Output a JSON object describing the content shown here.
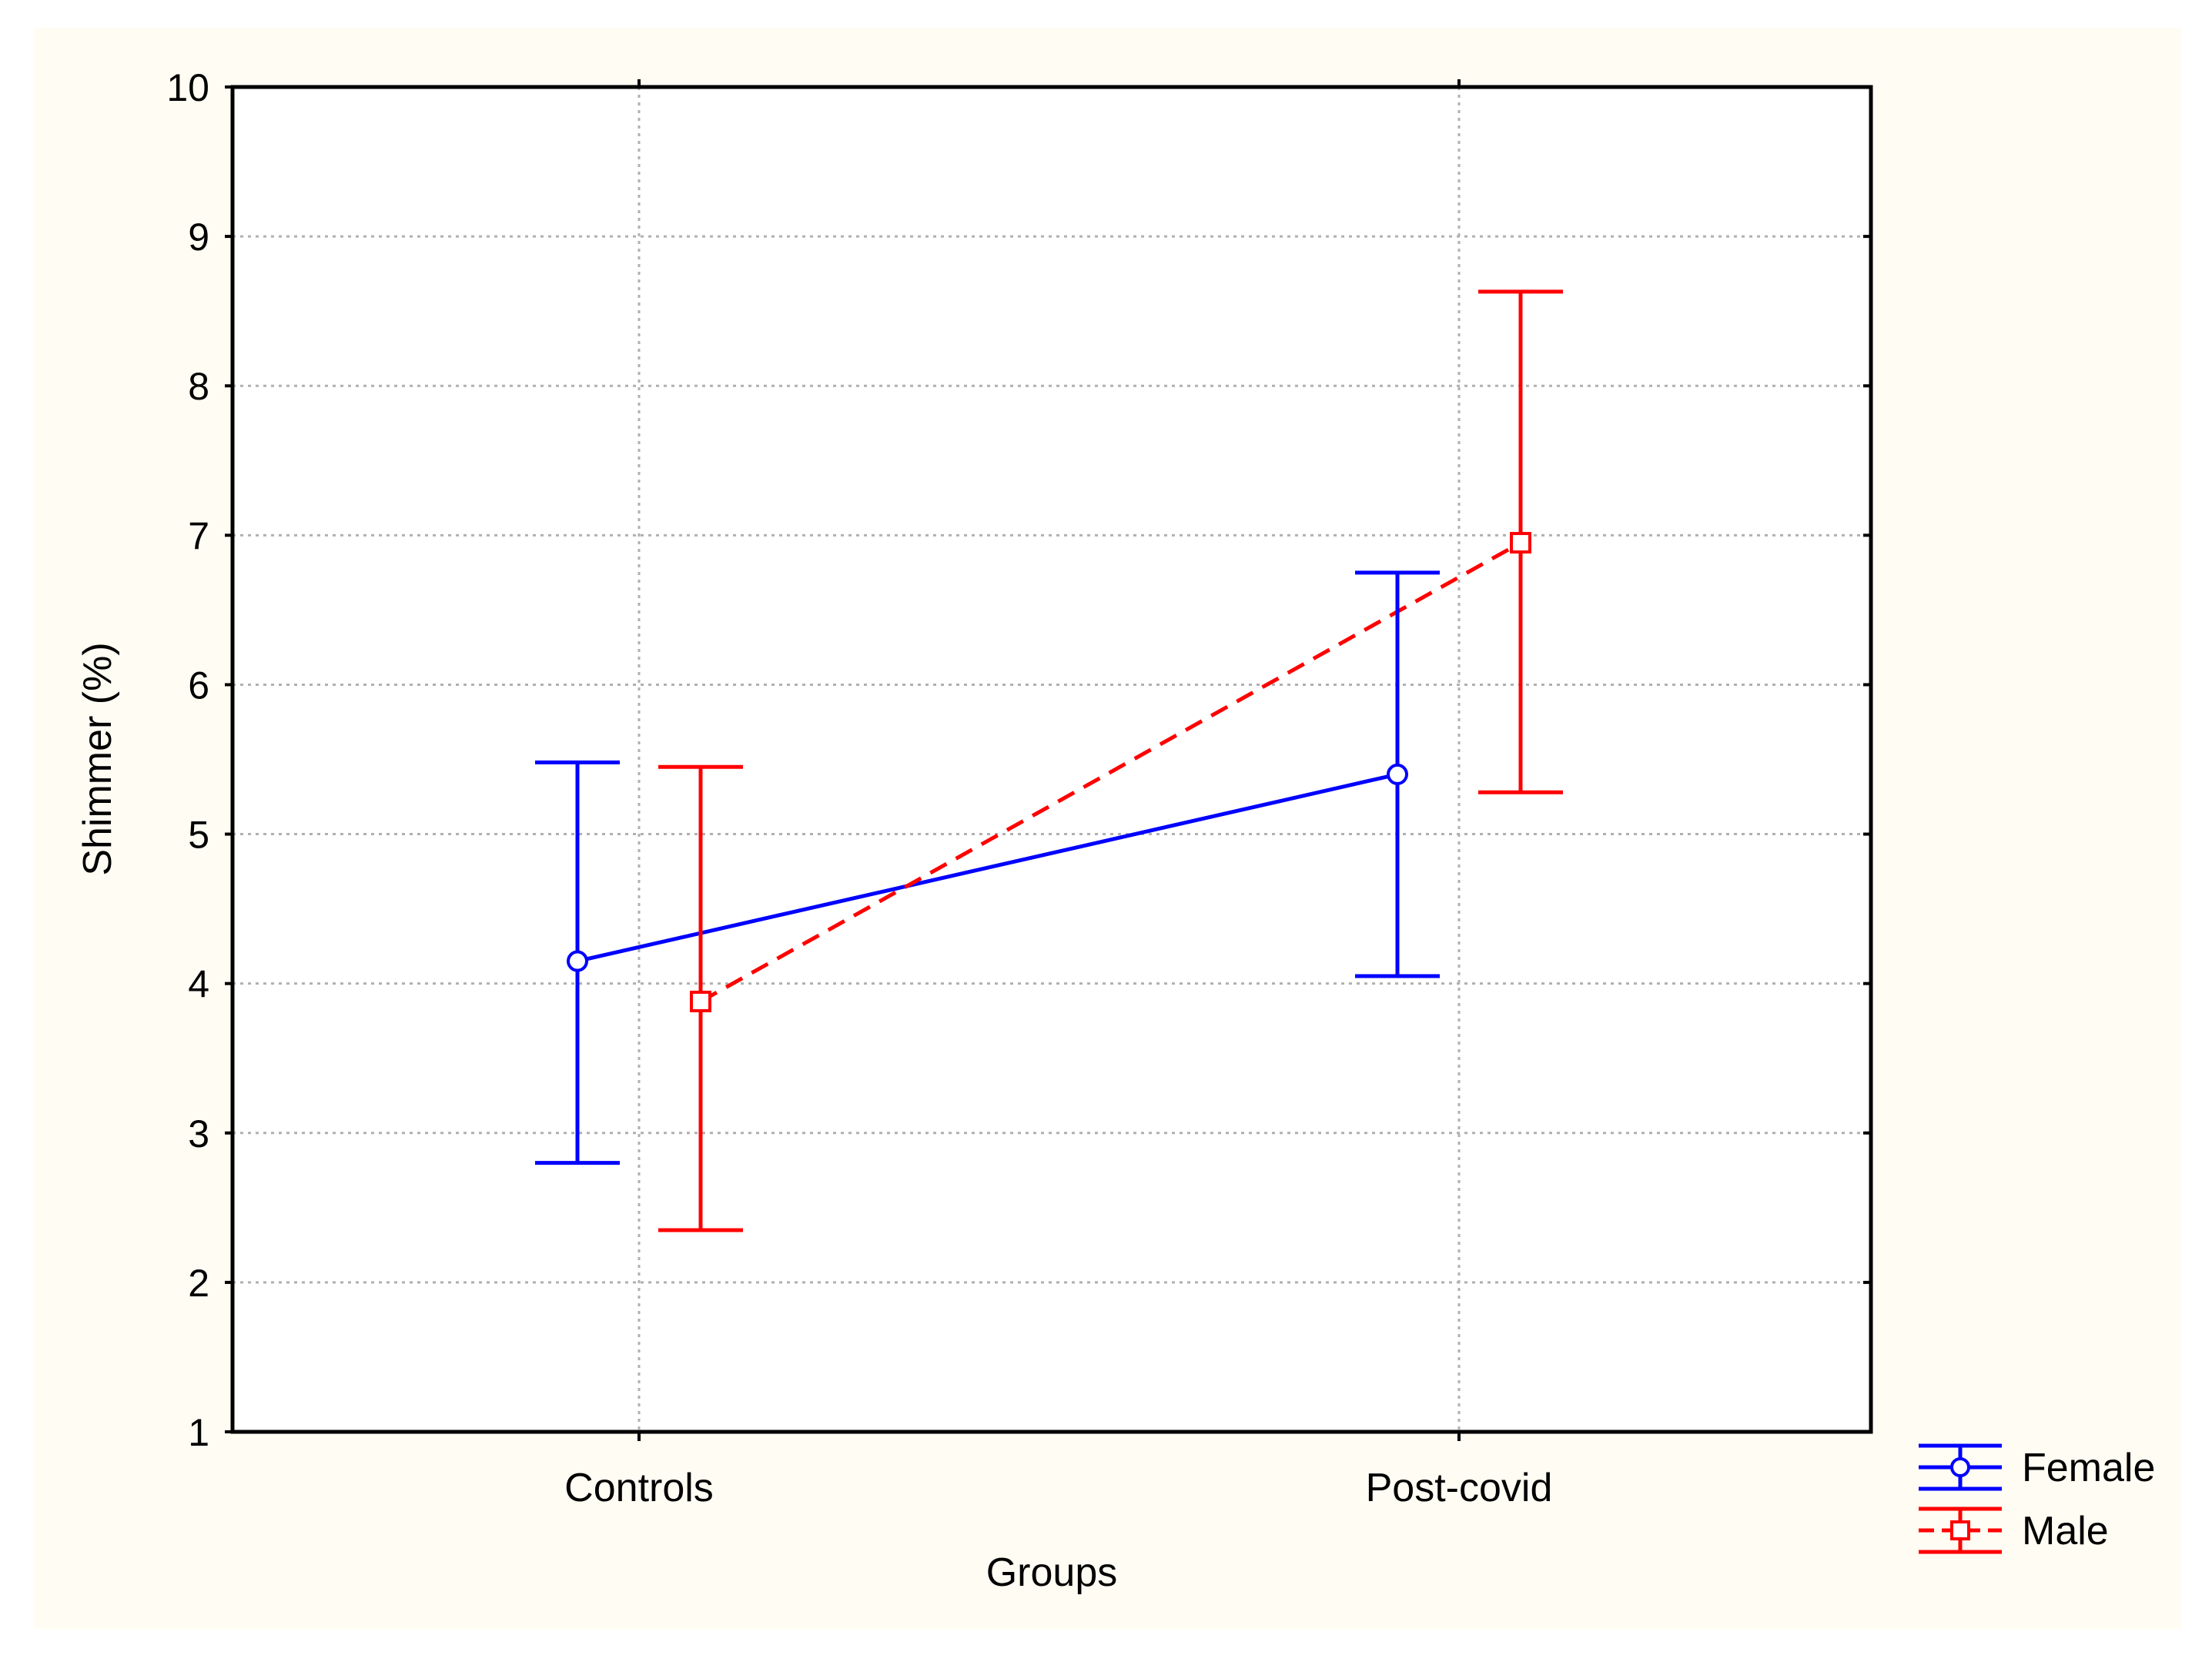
{
  "colors": {
    "page_background": "#ffffff",
    "panel_background": "#fffdf3",
    "plot_background": "#ffffff",
    "female": "#0000ff",
    "male": "#ff0000",
    "grid": "#b0b0b0"
  },
  "chart_data": {
    "type": "line",
    "chart_style": "interaction plot with error bars",
    "title": "",
    "xlabel": "Groups",
    "ylabel": "Shimmer (%)",
    "categories": [
      "Controls",
      "Post-covid"
    ],
    "ylim": [
      1,
      10
    ],
    "yticks": [
      "1",
      "2",
      "3",
      "4",
      "5",
      "6",
      "7",
      "8",
      "9",
      "10"
    ],
    "grid": true,
    "legend_position": "bottom-right",
    "series": [
      {
        "name": "Female",
        "marker": "circle",
        "line_style": "solid",
        "values": [
          4.15,
          5.4
        ],
        "lower": [
          2.8,
          4.05
        ],
        "upper": [
          5.48,
          6.75
        ]
      },
      {
        "name": "Male",
        "marker": "square",
        "line_style": "dashed",
        "values": [
          3.88,
          6.95
        ],
        "lower": [
          2.35,
          5.28
        ],
        "upper": [
          5.45,
          8.63
        ]
      }
    ]
  }
}
